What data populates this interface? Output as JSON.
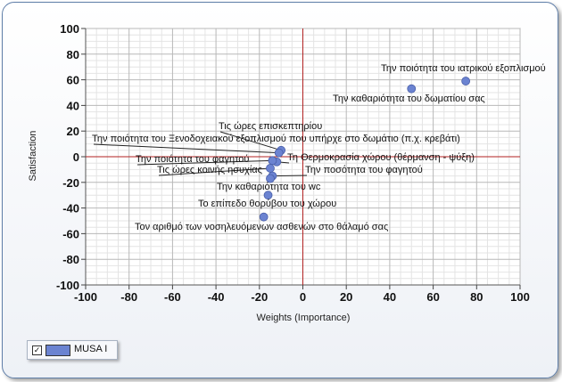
{
  "chart_data": {
    "type": "scatter",
    "xlabel": "Weights (Importance)",
    "ylabel": "Satisfaction",
    "xlim": [
      -100,
      100
    ],
    "ylim": [
      -100,
      100
    ],
    "x_ticks": [
      -100,
      -80,
      -60,
      -40,
      -20,
      0,
      20,
      40,
      60,
      80,
      100
    ],
    "y_ticks": [
      -100,
      -80,
      -60,
      -40,
      -20,
      0,
      20,
      40,
      60,
      80,
      100
    ],
    "grid": true,
    "reference_lines": {
      "x": 0,
      "y": 0,
      "color": "#b22222"
    },
    "marker_color": "#6b83d1",
    "legend": {
      "position": "bottom-left",
      "entries": [
        "MUSA I"
      ],
      "checked": true
    },
    "series": [
      {
        "name": "MUSA I",
        "points": [
          {
            "x": 75,
            "y": 59,
            "label": "Την ποιότητα του ιατρικού εξοπλισμού"
          },
          {
            "x": 50,
            "y": 53,
            "label": "Την καθαριότητα του δωματίου σας"
          },
          {
            "x": -10,
            "y": 5,
            "label": "Τις ώρες επισκεπτηρίου"
          },
          {
            "x": -11,
            "y": 3,
            "label": "Την ποιότητα του Ξενοδοχειακού εξοπλισμού που υπήρχε στο δωμάτιο (π.χ. κρεβάτι)"
          },
          {
            "x": -12,
            "y": -4,
            "label": "Τη Θερμοκρασία χώρου (θέρμανση - ψύξη)"
          },
          {
            "x": -14,
            "y": -3,
            "label": "Την ποιότητα του φαγητού"
          },
          {
            "x": -15,
            "y": -9,
            "label": "Τις ώρες κοινής ησυχίας"
          },
          {
            "x": -14,
            "y": -15,
            "label": "Την ποσότητα του φαγητού"
          },
          {
            "x": -15,
            "y": -17,
            "label": "Την καθαριότητα του wc"
          },
          {
            "x": -16,
            "y": -30,
            "label": "Το επίπεδο θορύβου του χώρου"
          },
          {
            "x": -18,
            "y": -47,
            "label": "Τον αριθμό των νοσηλευόμενων  ασθενών στο θάλαμό σας"
          }
        ]
      }
    ]
  }
}
